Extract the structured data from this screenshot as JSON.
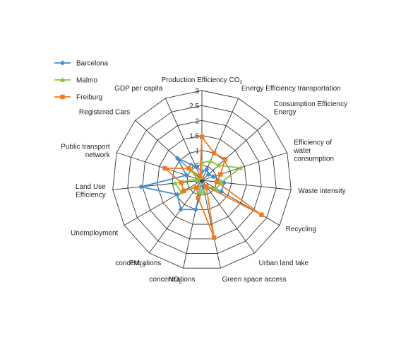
{
  "chart_data": {
    "type": "radar",
    "axes": [
      {
        "label": "Production Efficiency CO",
        "sub": "2",
        "lines": []
      },
      {
        "label": "Energy Efficiency transportation",
        "lines": [
          "Energy Efficiency transportation"
        ]
      },
      {
        "label": "Consumption Efficiency Energy",
        "lines": [
          "Consumption Efficiency",
          "Energy"
        ]
      },
      {
        "label": "Efficiency of water consumption",
        "lines": [
          "Efficiency of",
          "water",
          "consumption"
        ]
      },
      {
        "label": "Waste intensity",
        "lines": [
          "Waste intensity"
        ]
      },
      {
        "label": "Recycling",
        "lines": [
          "Recycling"
        ]
      },
      {
        "label": "Urban land take",
        "lines": [
          "Urban land take"
        ]
      },
      {
        "label": "Green space access",
        "lines": [
          "Green space access"
        ]
      },
      {
        "label": "NO2 concentrations",
        "lines": []
      },
      {
        "label": "PM10 concentrations",
        "lines": []
      },
      {
        "label": "Unemployment",
        "lines": [
          "Unemployment"
        ]
      },
      {
        "label": "Land Use Efficiency",
        "lines": [
          "Land Use",
          "Efficiency"
        ]
      },
      {
        "label": "Public transport network",
        "lines": [
          "Public transport",
          "network"
        ]
      },
      {
        "label": "Registered Cars",
        "lines": [
          "Registered Cars"
        ]
      },
      {
        "label": "GDP per capita",
        "lines": [
          "GDP per capita"
        ]
      }
    ],
    "ticks": [
      "0",
      "0.5",
      "1",
      "1.5",
      "2",
      "2.5",
      "3"
    ],
    "ylim": [
      0,
      3
    ],
    "series": [
      {
        "name": "Barcelona",
        "color": "#3d8fd1",
        "marker": "diamond",
        "values": [
          0.3,
          0.4,
          0.3,
          0.4,
          0.75,
          0.75,
          0.3,
          0.2,
          1.0,
          1.2,
          0.95,
          2.05,
          0.55,
          1.1,
          0.5
        ]
      },
      {
        "name": "Malmo",
        "color": "#8cc63f",
        "marker": "triangle",
        "values": [
          0.6,
          0.7,
          0.75,
          1.35,
          0.65,
          0.55,
          0.25,
          0.4,
          0.4,
          0.2,
          0.8,
          0.9,
          0.15,
          0.5,
          0.1
        ]
      },
      {
        "name": "Freiburg",
        "color": "#ee7b22",
        "marker": "square",
        "values": [
          1.45,
          1.0,
          1.05,
          0.65,
          0.5,
          2.3,
          0.25,
          1.95,
          0.6,
          0.3,
          0.7,
          0.7,
          1.3,
          0.6,
          0.15
        ]
      }
    ],
    "legend": {
      "position": "left"
    },
    "grid": true
  }
}
